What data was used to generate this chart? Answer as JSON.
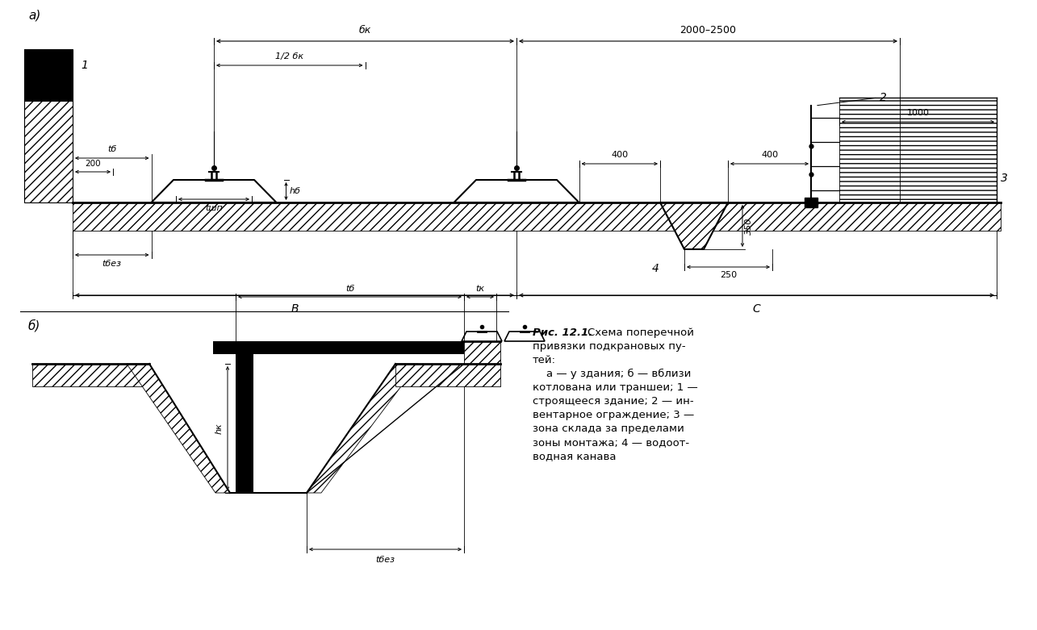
{
  "bg_color": "#ffffff",
  "title_a": "а)",
  "title_b": "б)",
  "label_1": "1",
  "label_2": "2",
  "label_3": "3",
  "label_4": "4",
  "dim_bk": "бк",
  "dim_half_bk": "1/2 бк",
  "dim_200": "200",
  "dim_tb": "tб",
  "dim_tsh": "tшп",
  "dim_hb": "hб",
  "dim_tbez": "tбез",
  "dim_B": "В",
  "dim_C": "С",
  "dim_2000_2500": "2000–2500",
  "dim_400_1": "400",
  "dim_400_2": "400",
  "dim_350": "350",
  "dim_250": "250",
  "dim_1000": "1000",
  "dim_tk": "tк",
  "dim_hk": "hк",
  "caption_bold": "Рис. 12.1.",
  "caption_rest": " Схема поперечной\nпривязки подкрановых пу-\nтей:\n    а — у здания; б — вблизи\nкотлована или траншеи; 1 —\nстроящееся здание; 2 — ин-\nвентарное ограждение; 3 —\nзона склада за пределами\nзоны монтажа; 4 — водоот-\nводная канава"
}
